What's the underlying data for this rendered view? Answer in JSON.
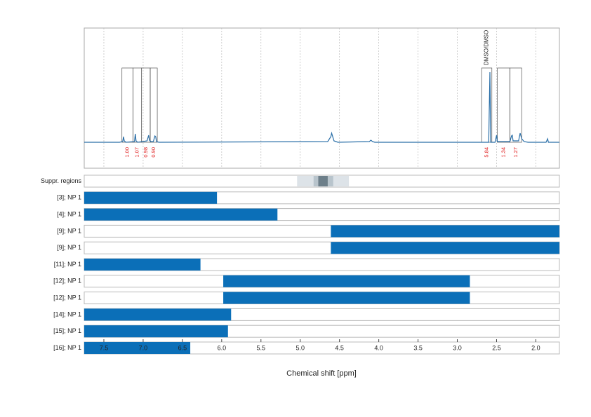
{
  "chart_data": {
    "type": "spectrum",
    "xlabel": "Chemical shift [ppm]",
    "xlim": [
      7.75,
      1.7
    ],
    "xticks": [
      7.5,
      {
        "value": 7,
        "label": "7.0"
      },
      6.5,
      {
        "value": 6,
        "label": "6.0"
      },
      5.5,
      {
        "value": 5,
        "label": "5.0"
      },
      4.5,
      {
        "value": 4,
        "label": "4.0"
      },
      3.5,
      {
        "value": 3,
        "label": "3.0"
      },
      2.5,
      {
        "value": 2,
        "label": "2.0"
      }
    ],
    "grid": true,
    "ylim": [
      -37,
      163
    ],
    "spectrum": {
      "color": "#2a6fa8",
      "x": [
        7.75,
        7.3,
        7.26,
        7.25,
        7.24,
        7.22,
        7.11,
        7.1,
        7.09,
        7.07,
        6.95,
        6.93,
        6.92,
        6.9,
        6.87,
        6.85,
        6.84,
        6.83,
        6.8,
        4.65,
        4.61,
        4.6,
        4.57,
        4.52,
        4.12,
        4.1,
        4.08,
        4.05,
        2.6,
        2.585,
        2.575,
        2.52,
        2.5,
        2.49,
        2.33,
        2.31,
        2.3,
        2.29,
        2.22,
        2.2,
        2.18,
        2.15,
        2.1,
        1.87,
        1.85,
        1.84,
        1.7
      ],
      "values": [
        0,
        0,
        1,
        8,
        2,
        0,
        1,
        12,
        2,
        0,
        2,
        10,
        3,
        1,
        1,
        9,
        8,
        1,
        0,
        1,
        8,
        13,
        2,
        0,
        1,
        3,
        1,
        0,
        0,
        100,
        0,
        0,
        10,
        1,
        1,
        9,
        10,
        2,
        2,
        13,
        5,
        1,
        0,
        0,
        5,
        0,
        0
      ]
    },
    "integrals": [
      {
        "range": [
          7.27,
          7.13
        ],
        "value": 1,
        "value_label": "1.00"
      },
      {
        "range": [
          7.13,
          7.02
        ],
        "value": 1.07
      },
      {
        "range": [
          7.02,
          6.91
        ],
        "value": 0.98
      },
      {
        "range": [
          6.91,
          6.82
        ],
        "value": 0.9,
        "value_label": "0.90"
      },
      {
        "range": [
          2.69,
          2.56
        ],
        "value": 5.84,
        "annotation": "DMSO/DMSO"
      },
      {
        "range": [
          2.49,
          2.33
        ],
        "value": 1.34
      },
      {
        "range": [
          2.33,
          2.18
        ],
        "value": 1.27
      }
    ],
    "suppressed": {
      "label": "Suppr. regions",
      "regions": [
        {
          "range": [
            5.04,
            4.38
          ],
          "color": "#dde3e8"
        },
        {
          "range": [
            4.83,
            4.58
          ],
          "color": "#b8c4cc"
        },
        {
          "range": [
            4.77,
            4.65
          ],
          "color": "#6d7f8a"
        }
      ]
    },
    "bars": {
      "color": "#0b6fb8",
      "rows": [
        {
          "label": "[3]; NP 1",
          "range": [
            7.75,
            6.06
          ]
        },
        {
          "label": "[4]; NP 1",
          "range": [
            7.75,
            5.29
          ]
        },
        {
          "label": "[9]; NP 1",
          "range": [
            4.61,
            1.7
          ]
        },
        {
          "label": "[9]; NP 1",
          "range": [
            4.61,
            1.7
          ]
        },
        {
          "label": "[11]; NP 1",
          "range": [
            7.75,
            6.27
          ]
        },
        {
          "label": "[12]; NP 1",
          "range": [
            5.98,
            2.84
          ]
        },
        {
          "label": "[12]; NP 1",
          "range": [
            5.98,
            2.84
          ]
        },
        {
          "label": "[14]; NP 1",
          "range": [
            7.75,
            5.88
          ]
        },
        {
          "label": "[15]; NP 1",
          "range": [
            7.75,
            5.92
          ]
        },
        {
          "label": "[16]; NP 1",
          "range": [
            7.75,
            6.4
          ]
        }
      ]
    }
  }
}
